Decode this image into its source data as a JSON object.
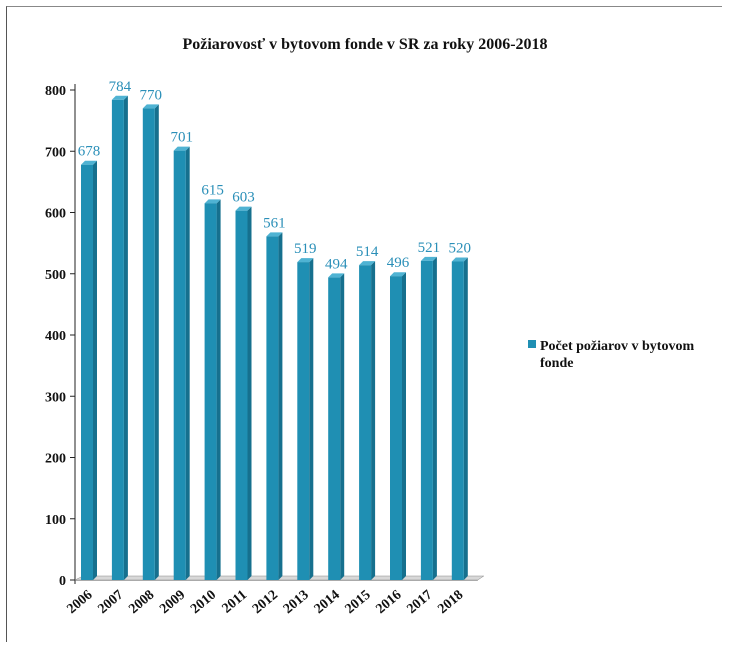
{
  "chart_data": {
    "type": "bar",
    "title": "Požiarovosť v bytovom fonde v SR za roky 2006-2018",
    "xlabel": "",
    "ylabel": "",
    "categories": [
      "2006",
      "2007",
      "2008",
      "2009",
      "2010",
      "2011",
      "2012",
      "2013",
      "2014",
      "2015",
      "2016",
      "2017",
      "2018"
    ],
    "series": [
      {
        "name": "Počet požiarov v bytovom fonde",
        "values": [
          678,
          784,
          770,
          701,
          615,
          603,
          561,
          519,
          494,
          514,
          496,
          521,
          520
        ],
        "color": "#1f8fb3"
      }
    ],
    "ylim": [
      0,
      800
    ],
    "yticks": [
      0,
      100,
      200,
      300,
      400,
      500,
      600,
      700,
      800
    ],
    "legend": {
      "position": "right",
      "label_lines": [
        "Počet požiarov v bytovom",
        "fonde"
      ]
    },
    "grid": false,
    "data_label_color": "#2a8fb8",
    "axis_color": "#222222"
  }
}
